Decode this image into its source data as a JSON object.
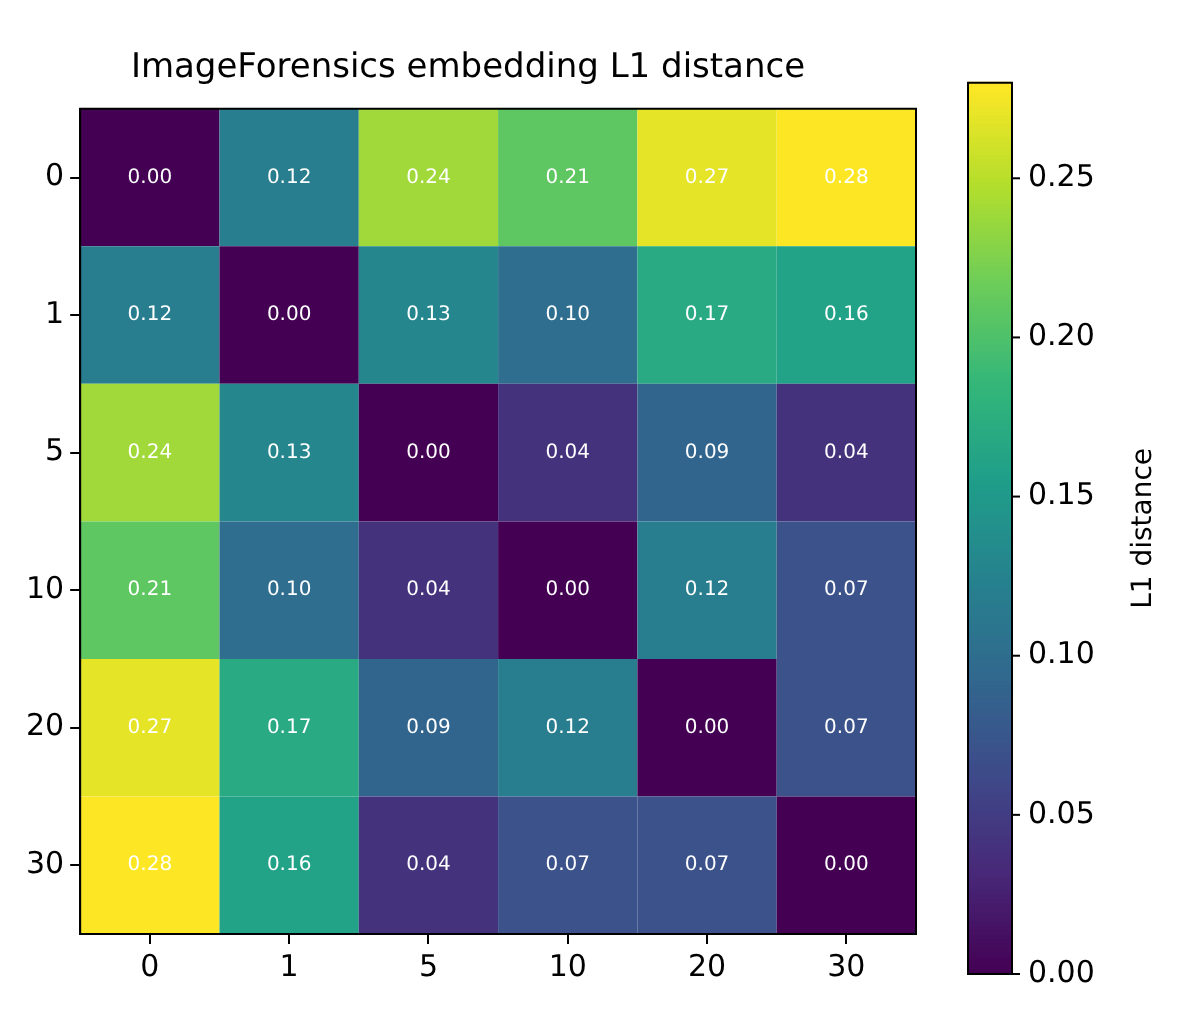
{
  "chart_data": {
    "type": "heatmap",
    "title": "ImageForensics embedding L1 distance",
    "clabel": "L1 distance",
    "categories": [
      "0",
      "1",
      "5",
      "10",
      "20",
      "30"
    ],
    "y_categories": [
      "0",
      "1",
      "5",
      "10",
      "20",
      "30"
    ],
    "cells": [
      [
        0.0,
        0.12,
        0.24,
        0.21,
        0.27,
        0.28
      ],
      [
        0.12,
        0.0,
        0.13,
        0.1,
        0.17,
        0.16
      ],
      [
        0.24,
        0.13,
        0.0,
        0.04,
        0.09,
        0.04
      ],
      [
        0.21,
        0.1,
        0.04,
        0.0,
        0.12,
        0.07
      ],
      [
        0.27,
        0.17,
        0.09,
        0.12,
        0.0,
        0.07
      ],
      [
        0.28,
        0.16,
        0.04,
        0.07,
        0.07,
        0.0
      ]
    ],
    "cell_labels": [
      [
        "0.00",
        "0.12",
        "0.24",
        "0.21",
        "0.27",
        "0.28"
      ],
      [
        "0.12",
        "0.00",
        "0.13",
        "0.10",
        "0.17",
        "0.16"
      ],
      [
        "0.24",
        "0.13",
        "0.00",
        "0.04",
        "0.09",
        "0.04"
      ],
      [
        "0.21",
        "0.10",
        "0.04",
        "0.00",
        "0.12",
        "0.07"
      ],
      [
        "0.27",
        "0.17",
        "0.09",
        "0.12",
        "0.00",
        "0.07"
      ],
      [
        "0.28",
        "0.16",
        "0.04",
        "0.07",
        "0.07",
        "0.00"
      ]
    ],
    "clim": [
      0,
      0.28
    ],
    "cticks": [
      {
        "value": 0,
        "label": "0.00"
      },
      0.05,
      {
        "value": 0.1,
        "label": "0.10"
      },
      0.15,
      {
        "value": 0.2,
        "label": "0.20"
      },
      0.25
    ]
  }
}
